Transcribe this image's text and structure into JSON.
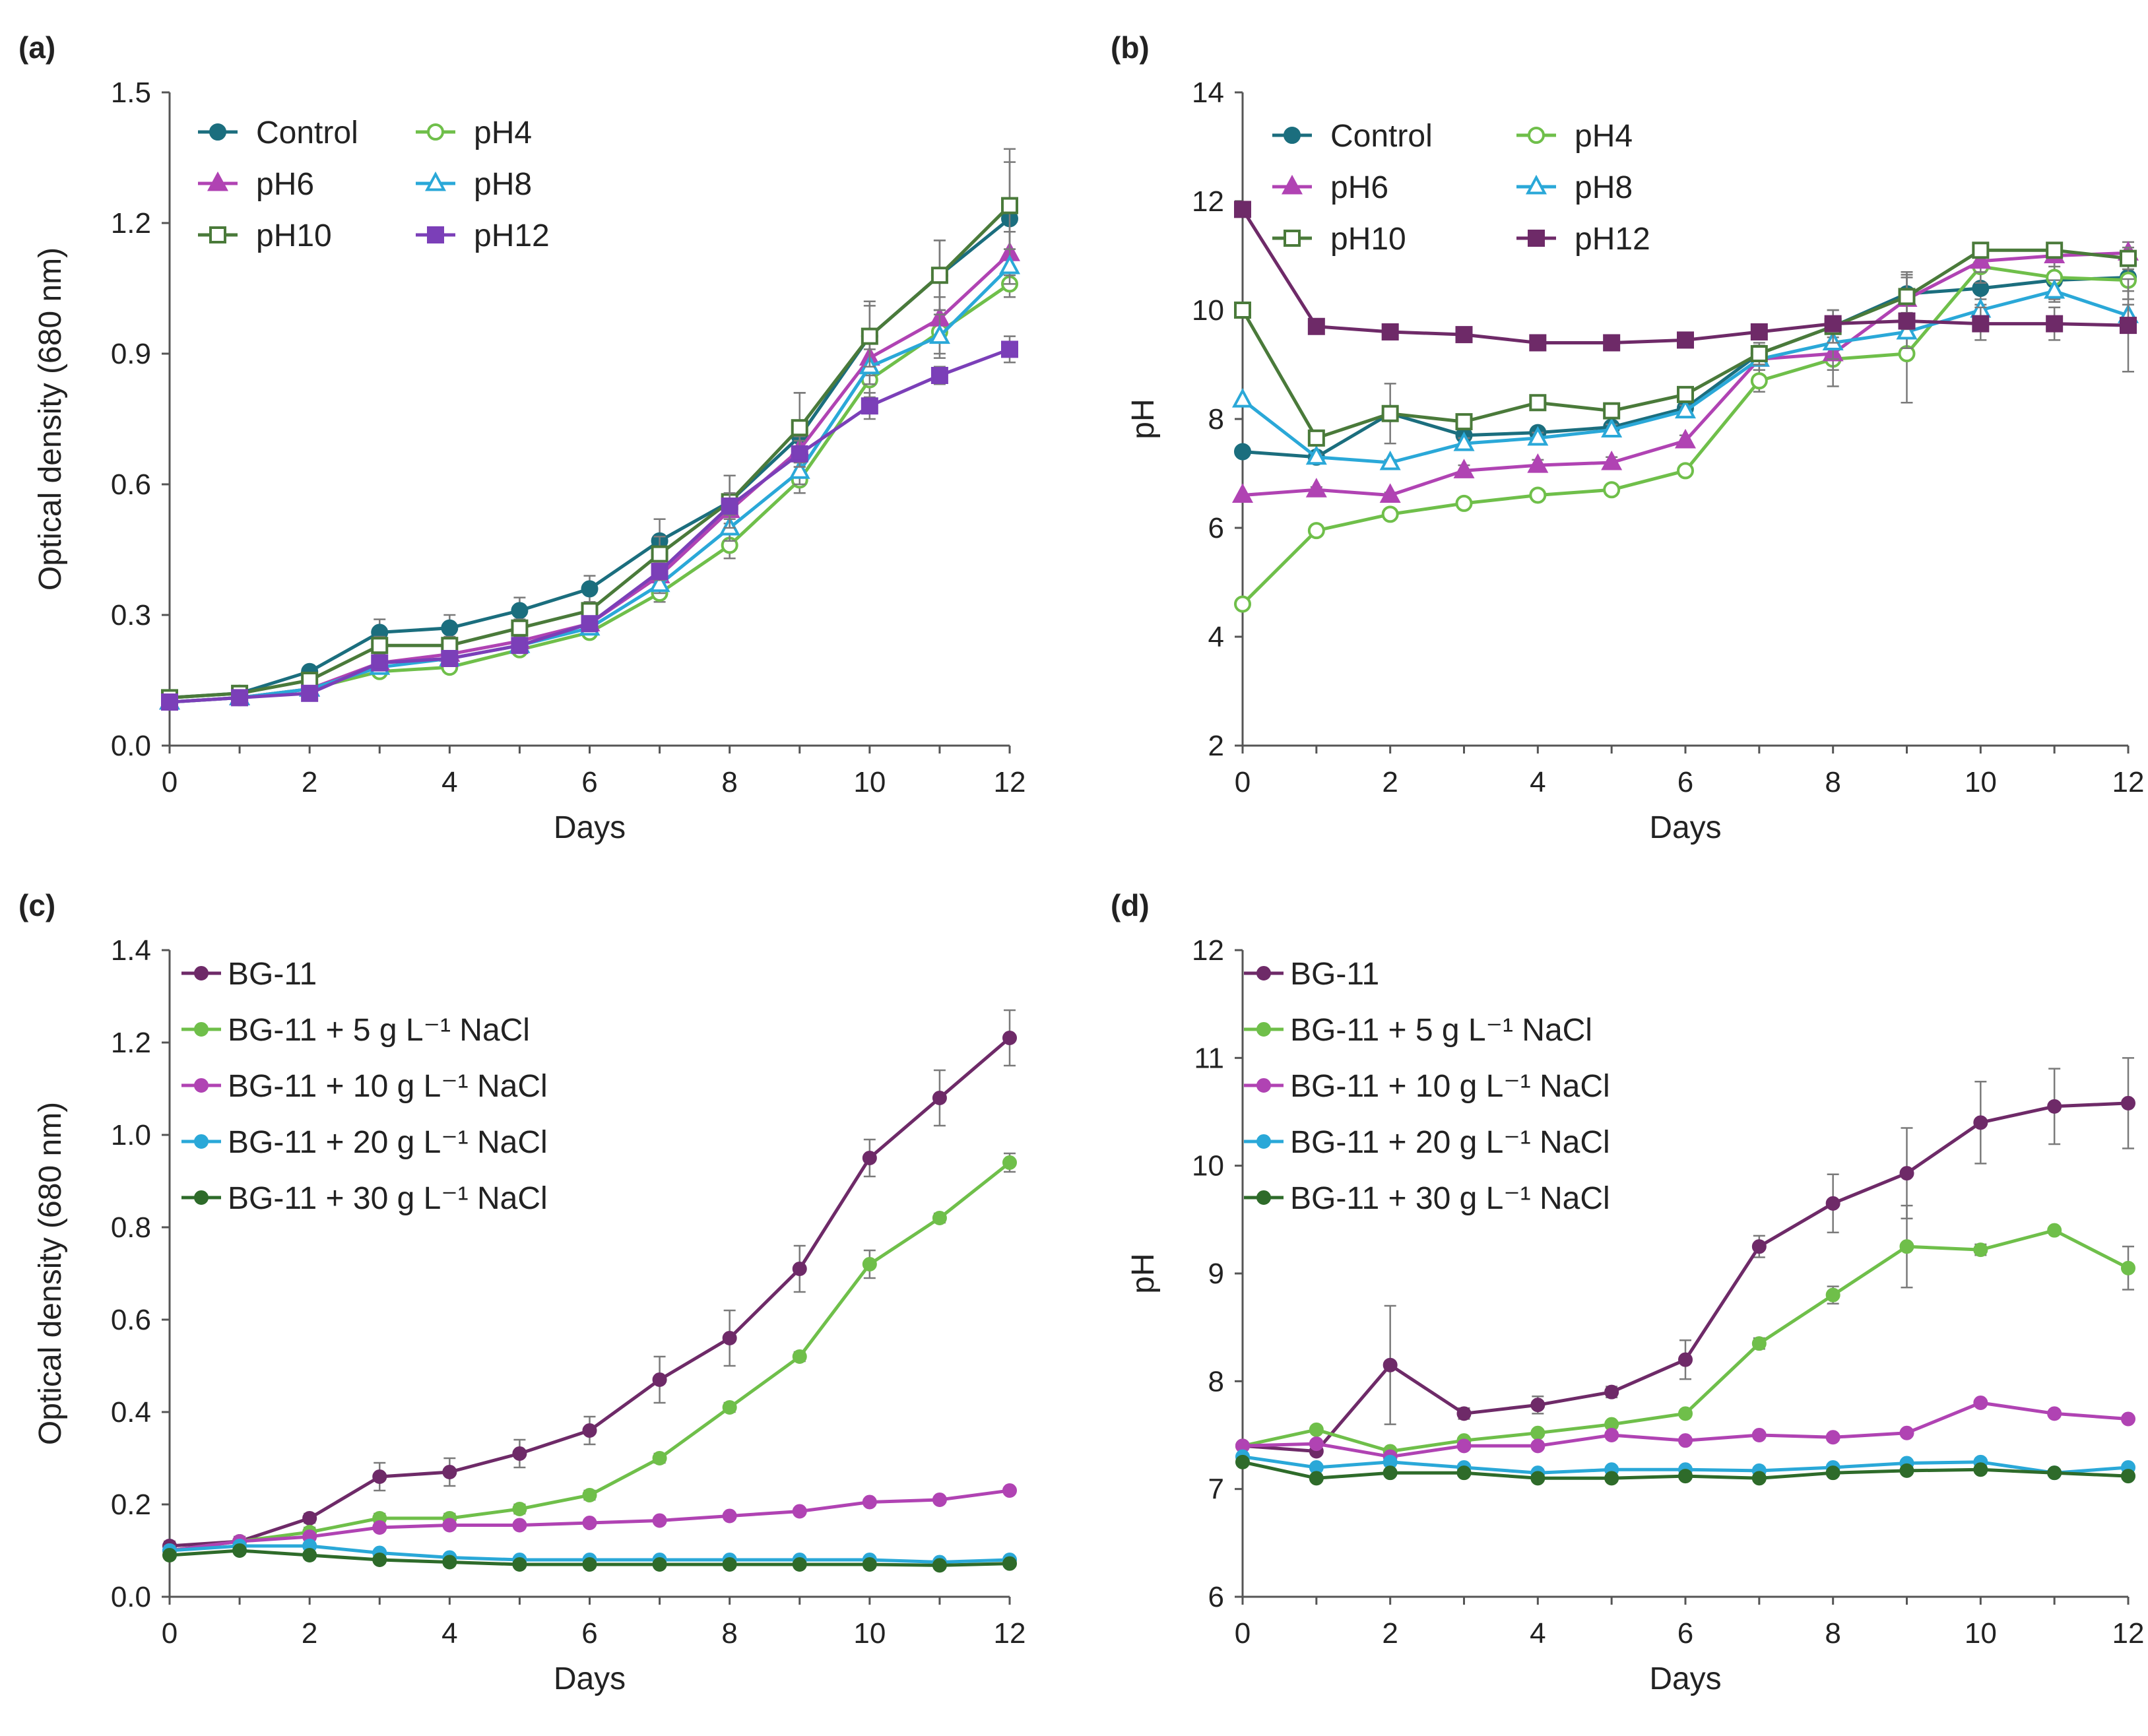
{
  "chart_data": [
    {
      "panel": "(a)",
      "type": "line",
      "xlabel": "Days",
      "ylabel": "Optical density (680 nm)",
      "x": [
        0,
        1,
        2,
        3,
        4,
        5,
        6,
        7,
        8,
        9,
        10,
        11,
        12
      ],
      "xticks": [
        "0",
        "2",
        "4",
        "6",
        "8",
        "10",
        "12"
      ],
      "xlim": [
        0,
        12
      ],
      "ylim": [
        0,
        1.5
      ],
      "yticks": [
        "0.0",
        "0.3",
        "0.6",
        "0.9",
        "1.2",
        "1.5"
      ],
      "legend_position": "top-left",
      "legend_columns": 2,
      "series": [
        {
          "name": "Control",
          "color": "#1b6e7e",
          "marker": "circle",
          "filled": true,
          "values": [
            0.11,
            0.12,
            0.17,
            0.26,
            0.27,
            0.31,
            0.36,
            0.47,
            0.56,
            0.71,
            0.94,
            1.08,
            1.21
          ],
          "errors": [
            0.01,
            0.01,
            0.01,
            0.03,
            0.03,
            0.03,
            0.03,
            0.05,
            0.06,
            0.1,
            0.08,
            0.08,
            0.16
          ]
        },
        {
          "name": "pH4",
          "color": "#6fbf4a",
          "marker": "circle",
          "filled": false,
          "values": [
            0.1,
            0.11,
            0.13,
            0.17,
            0.18,
            0.22,
            0.26,
            0.35,
            0.46,
            0.61,
            0.84,
            0.95,
            1.06
          ],
          "errors": [
            0.01,
            0.01,
            0.01,
            0.01,
            0.01,
            0.01,
            0.01,
            0.02,
            0.03,
            0.03,
            0.04,
            0.05,
            0.03
          ]
        },
        {
          "name": "pH6",
          "color": "#b043b3",
          "marker": "triangle",
          "filled": true,
          "values": [
            0.1,
            0.11,
            0.13,
            0.19,
            0.21,
            0.24,
            0.28,
            0.39,
            0.54,
            0.68,
            0.89,
            0.98,
            1.13
          ],
          "errors": [
            0.01,
            0.01,
            0.01,
            0.01,
            0.01,
            0.01,
            0.01,
            0.02,
            0.03,
            0.03,
            0.04,
            0.05,
            0.05
          ]
        },
        {
          "name": "pH8",
          "color": "#2aa8d8",
          "marker": "triangle",
          "filled": false,
          "values": [
            0.1,
            0.11,
            0.13,
            0.18,
            0.2,
            0.23,
            0.27,
            0.37,
            0.5,
            0.63,
            0.87,
            0.94,
            1.1
          ],
          "errors": [
            0.01,
            0.01,
            0.01,
            0.01,
            0.01,
            0.01,
            0.01,
            0.02,
            0.03,
            0.03,
            0.04,
            0.05,
            0.04
          ]
        },
        {
          "name": "pH10",
          "color": "#4a7a3a",
          "marker": "square",
          "filled": false,
          "values": [
            0.11,
            0.12,
            0.15,
            0.23,
            0.23,
            0.27,
            0.31,
            0.44,
            0.56,
            0.73,
            0.94,
            1.08,
            1.24
          ],
          "errors": [
            0.01,
            0.01,
            0.01,
            0.02,
            0.02,
            0.02,
            0.02,
            0.04,
            0.06,
            0.08,
            0.07,
            0.08,
            0.1
          ]
        },
        {
          "name": "pH12",
          "color": "#7b3fb8",
          "marker": "square",
          "filled": true,
          "values": [
            0.1,
            0.11,
            0.12,
            0.19,
            0.2,
            0.23,
            0.28,
            0.4,
            0.55,
            0.67,
            0.78,
            0.85,
            0.91
          ],
          "errors": [
            0.01,
            0.01,
            0.01,
            0.01,
            0.01,
            0.01,
            0.01,
            0.02,
            0.03,
            0.03,
            0.03,
            0.02,
            0.03
          ]
        }
      ]
    },
    {
      "panel": "(b)",
      "type": "line",
      "xlabel": "Days",
      "ylabel": "pH",
      "x": [
        0,
        1,
        2,
        3,
        4,
        5,
        6,
        7,
        8,
        9,
        10,
        11,
        12
      ],
      "xticks": [
        "0",
        "2",
        "4",
        "6",
        "8",
        "10",
        "12"
      ],
      "xlim": [
        0,
        12
      ],
      "ylim": [
        2,
        14
      ],
      "yticks": [
        "2",
        "4",
        "6",
        "8",
        "10",
        "12",
        "14"
      ],
      "legend_position": "top-left",
      "legend_columns": 2,
      "series": [
        {
          "name": "Control",
          "color": "#1b6e7e",
          "marker": "circle",
          "filled": true,
          "values": [
            7.4,
            7.3,
            8.1,
            7.7,
            7.75,
            7.85,
            8.2,
            9.2,
            9.7,
            10.3,
            10.4,
            10.55,
            10.6
          ],
          "errors": [
            0,
            0,
            0.55,
            0.15,
            0.1,
            0.1,
            0.15,
            0.15,
            0.3,
            0.4,
            0.3,
            0.35,
            0.4
          ]
        },
        {
          "name": "pH4",
          "color": "#6fbf4a",
          "marker": "circle",
          "filled": false,
          "values": [
            4.6,
            5.95,
            6.25,
            6.45,
            6.6,
            6.7,
            7.05,
            8.7,
            9.1,
            9.2,
            10.8,
            10.6,
            10.55
          ],
          "errors": [
            0,
            0.05,
            0.05,
            0.05,
            0.05,
            0.05,
            0.05,
            0.2,
            0.5,
            0.9,
            0.3,
            0.3,
            0.2
          ]
        },
        {
          "name": "pH6",
          "color": "#b043b3",
          "marker": "triangle",
          "filled": true,
          "values": [
            6.6,
            6.7,
            6.6,
            7.05,
            7.15,
            7.2,
            7.6,
            9.1,
            9.2,
            10.2,
            10.9,
            11.0,
            11.05
          ],
          "errors": [
            0,
            0.05,
            0.05,
            0.1,
            0.1,
            0.1,
            0.1,
            0.2,
            0.3,
            0.4,
            0.2,
            0.2,
            0.2
          ]
        },
        {
          "name": "pH8",
          "color": "#2aa8d8",
          "marker": "triangle",
          "filled": false,
          "values": [
            8.35,
            7.3,
            7.2,
            7.55,
            7.65,
            7.8,
            8.15,
            9.1,
            9.4,
            9.6,
            10.0,
            10.35,
            9.9
          ],
          "errors": [
            0,
            0.05,
            0.05,
            0.1,
            0.1,
            0.1,
            0.1,
            0.2,
            0.3,
            0.3,
            0.2,
            0.2,
            0.2
          ]
        },
        {
          "name": "pH10",
          "color": "#4a7a3a",
          "marker": "square",
          "filled": false,
          "values": [
            10.0,
            7.65,
            8.1,
            7.95,
            8.3,
            8.15,
            8.45,
            9.2,
            9.7,
            10.25,
            11.1,
            11.1,
            10.95
          ],
          "errors": [
            0,
            0.05,
            0.1,
            0.1,
            0.1,
            0.1,
            0.1,
            0.2,
            0.3,
            0.4,
            0.1,
            0.1,
            0.2
          ]
        },
        {
          "name": "pH12",
          "color": "#6e2a68",
          "marker": "square",
          "filled": true,
          "values": [
            11.85,
            9.7,
            9.6,
            9.55,
            9.4,
            9.4,
            9.45,
            9.6,
            9.75,
            9.8,
            9.75,
            9.75,
            9.72
          ],
          "errors": [
            0,
            0.05,
            0.05,
            0.05,
            0.05,
            0.05,
            0.05,
            0.1,
            0.1,
            0.15,
            0.3,
            0.3,
            0.85
          ]
        }
      ]
    },
    {
      "panel": "(c)",
      "type": "line",
      "xlabel": "Days",
      "ylabel": "Optical density (680 nm)",
      "x": [
        0,
        1,
        2,
        3,
        4,
        5,
        6,
        7,
        8,
        9,
        10,
        11,
        12
      ],
      "xticks": [
        "0",
        "2",
        "4",
        "6",
        "8",
        "10",
        "12"
      ],
      "xlim": [
        0,
        12
      ],
      "ylim": [
        0,
        1.4
      ],
      "yticks": [
        "0.0",
        "0.2",
        "0.4",
        "0.6",
        "0.8",
        "1.0",
        "1.2",
        "1.4"
      ],
      "legend_position": "top-left",
      "legend_columns": 1,
      "series": [
        {
          "name": "BG-11",
          "color": "#6e2a68",
          "marker": "circle",
          "filled": true,
          "values": [
            0.11,
            0.12,
            0.17,
            0.26,
            0.27,
            0.31,
            0.36,
            0.47,
            0.56,
            0.71,
            0.95,
            1.08,
            1.21
          ],
          "errors": [
            0.01,
            0.01,
            0.01,
            0.03,
            0.03,
            0.03,
            0.03,
            0.05,
            0.06,
            0.05,
            0.04,
            0.06,
            0.06
          ]
        },
        {
          "name": "BG-11 + 5 g L⁻¹ NaCl",
          "color": "#6fbf4a",
          "marker": "circle",
          "filled": true,
          "values": [
            0.1,
            0.12,
            0.14,
            0.17,
            0.17,
            0.19,
            0.22,
            0.3,
            0.41,
            0.52,
            0.72,
            0.82,
            0.94
          ],
          "errors": [
            0.01,
            0.01,
            0.01,
            0.01,
            0.01,
            0.01,
            0.01,
            0.01,
            0.01,
            0.01,
            0.03,
            0.01,
            0.02
          ]
        },
        {
          "name": "BG-11 + 10 g L⁻¹ NaCl",
          "color": "#b043b3",
          "marker": "circle",
          "filled": true,
          "values": [
            0.1,
            0.12,
            0.13,
            0.15,
            0.155,
            0.155,
            0.16,
            0.165,
            0.175,
            0.185,
            0.205,
            0.21,
            0.23
          ],
          "errors": [
            0.005,
            0.005,
            0.005,
            0.005,
            0.005,
            0.005,
            0.005,
            0.005,
            0.005,
            0.005,
            0.005,
            0.005,
            0.005
          ]
        },
        {
          "name": "BG-11 + 20 g L⁻¹ NaCl",
          "color": "#2aa8d8",
          "marker": "circle",
          "filled": true,
          "values": [
            0.1,
            0.11,
            0.11,
            0.095,
            0.085,
            0.08,
            0.08,
            0.08,
            0.08,
            0.08,
            0.08,
            0.075,
            0.08
          ],
          "errors": [
            0.005,
            0.005,
            0.005,
            0.005,
            0.005,
            0.005,
            0.005,
            0.005,
            0.005,
            0.005,
            0.005,
            0.005,
            0.005
          ]
        },
        {
          "name": "BG-11 + 30 g L⁻¹ NaCl",
          "color": "#2e6b2a",
          "marker": "circle",
          "filled": true,
          "values": [
            0.09,
            0.1,
            0.09,
            0.08,
            0.075,
            0.07,
            0.07,
            0.07,
            0.07,
            0.07,
            0.07,
            0.068,
            0.072
          ],
          "errors": [
            0.005,
            0.005,
            0.005,
            0.005,
            0.005,
            0.005,
            0.005,
            0.005,
            0.005,
            0.005,
            0.005,
            0.005,
            0.005
          ]
        }
      ]
    },
    {
      "panel": "(d)",
      "type": "line",
      "xlabel": "Days",
      "ylabel": "pH",
      "x": [
        0,
        1,
        2,
        3,
        4,
        5,
        6,
        7,
        8,
        9,
        10,
        11,
        12
      ],
      "xticks": [
        "0",
        "2",
        "4",
        "6",
        "8",
        "10",
        "12"
      ],
      "xlim": [
        0,
        12
      ],
      "ylim": [
        6,
        12
      ],
      "yticks": [
        "6",
        "7",
        "8",
        "9",
        "10",
        "11",
        "12"
      ],
      "legend_position": "top-left",
      "legend_columns": 1,
      "series": [
        {
          "name": "BG-11",
          "color": "#6e2a68",
          "marker": "circle",
          "filled": true,
          "values": [
            7.4,
            7.35,
            8.15,
            7.7,
            7.78,
            7.9,
            8.2,
            9.25,
            9.65,
            9.93,
            10.4,
            10.55,
            10.58
          ],
          "errors": [
            0.02,
            0.02,
            0.55,
            0.05,
            0.08,
            0.05,
            0.18,
            0.1,
            0.27,
            0.42,
            0.38,
            0.35,
            0.42
          ]
        },
        {
          "name": "BG-11 + 5 g L⁻¹ NaCl",
          "color": "#6fbf4a",
          "marker": "circle",
          "filled": true,
          "values": [
            7.4,
            7.55,
            7.35,
            7.45,
            7.52,
            7.6,
            7.7,
            8.35,
            8.8,
            9.25,
            9.22,
            9.4,
            9.05
          ],
          "errors": [
            0.02,
            0.02,
            0.02,
            0.02,
            0.02,
            0.02,
            0.02,
            0.05,
            0.08,
            0.38,
            0.05,
            0.03,
            0.2
          ]
        },
        {
          "name": "BG-11 + 10 g L⁻¹ NaCl",
          "color": "#b043b3",
          "marker": "circle",
          "filled": true,
          "values": [
            7.4,
            7.42,
            7.3,
            7.4,
            7.4,
            7.5,
            7.45,
            7.5,
            7.48,
            7.52,
            7.8,
            7.7,
            7.65
          ],
          "errors": [
            0.02,
            0.02,
            0.02,
            0.02,
            0.02,
            0.02,
            0.02,
            0.02,
            0.02,
            0.02,
            0.02,
            0.02,
            0.02
          ]
        },
        {
          "name": "BG-11 + 20 g L⁻¹ NaCl",
          "color": "#2aa8d8",
          "marker": "circle",
          "filled": true,
          "values": [
            7.3,
            7.2,
            7.25,
            7.2,
            7.15,
            7.18,
            7.18,
            7.17,
            7.2,
            7.24,
            7.25,
            7.15,
            7.2
          ],
          "errors": [
            0.02,
            0.02,
            0.02,
            0.02,
            0.02,
            0.02,
            0.02,
            0.02,
            0.02,
            0.02,
            0.02,
            0.02,
            0.02
          ]
        },
        {
          "name": "BG-11 + 30 g L⁻¹ NaCl",
          "color": "#2e6b2a",
          "marker": "circle",
          "filled": true,
          "values": [
            7.25,
            7.1,
            7.15,
            7.15,
            7.1,
            7.1,
            7.12,
            7.1,
            7.15,
            7.17,
            7.18,
            7.15,
            7.12
          ],
          "errors": [
            0.02,
            0.02,
            0.02,
            0.02,
            0.02,
            0.02,
            0.02,
            0.02,
            0.02,
            0.02,
            0.02,
            0.02,
            0.02
          ]
        }
      ]
    }
  ]
}
